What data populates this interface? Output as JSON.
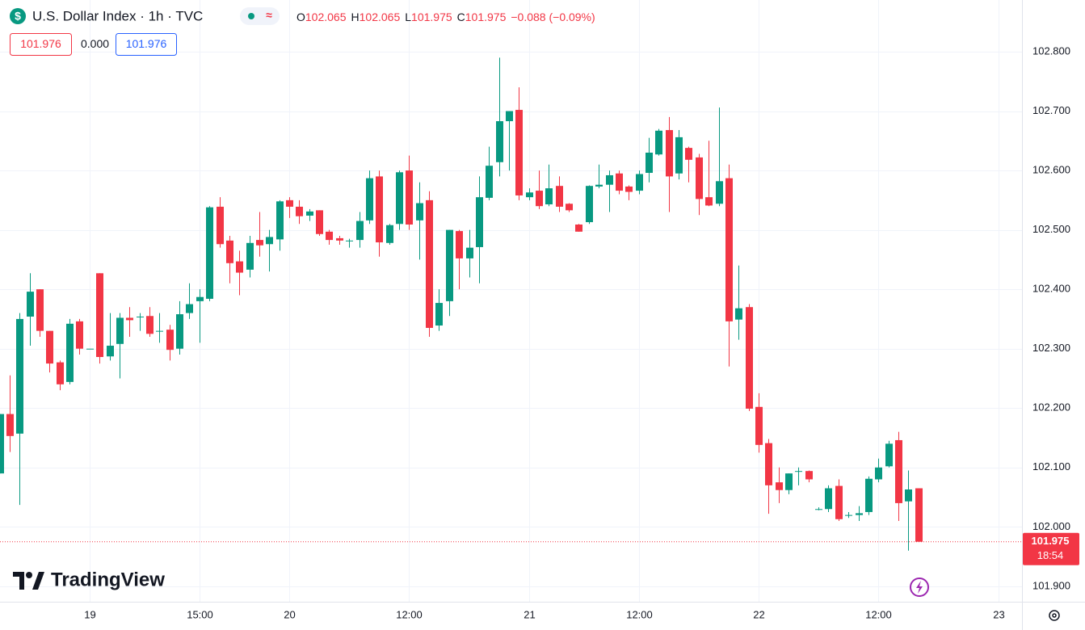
{
  "header": {
    "symbol": "U.S. Dollar Index · 1h · TVC",
    "open_label": "O",
    "open": "102.065",
    "high_label": "H",
    "high": "102.065",
    "low_label": "L",
    "low": "101.975",
    "close_label": "C",
    "close": "101.975",
    "change": "−0.088 (−0.09%)",
    "indicator_1": "101.976",
    "indicator_2": "0.000",
    "indicator_3": "101.976"
  },
  "watermark": "TradingView",
  "chart_data": {
    "type": "candlestick",
    "categories": [
      null,
      null,
      null,
      null,
      null,
      null,
      null,
      null,
      null,
      "19",
      null,
      null,
      null,
      null,
      null,
      null,
      null,
      null,
      null,
      null,
      "15:00",
      null,
      null,
      null,
      null,
      null,
      null,
      null,
      null,
      "20",
      null,
      null,
      null,
      null,
      null,
      null,
      null,
      null,
      null,
      null,
      null,
      "12:00",
      null,
      null,
      null,
      null,
      null,
      null,
      null,
      null,
      null,
      null,
      null,
      "21",
      null,
      null,
      null,
      null,
      null,
      null,
      null,
      null,
      null,
      null,
      "12:00",
      null,
      null,
      null,
      null,
      null,
      null,
      null,
      null,
      null,
      null,
      null,
      "22",
      null,
      null,
      null,
      null,
      null,
      null,
      null,
      null,
      null,
      null,
      null,
      "12:00",
      null,
      null,
      null,
      null,
      null,
      null,
      null,
      null,
      null,
      null,
      null,
      "23"
    ],
    "open": [
      102.09,
      102.19,
      102.157,
      102.354,
      102.4,
      102.33,
      102.277,
      102.244,
      102.346,
      102.3,
      102.427,
      102.287,
      102.308,
      102.352,
      102.354,
      102.355,
      102.33,
      102.332,
      102.3,
      102.36,
      102.38,
      102.384,
      102.539,
      102.482,
      102.447,
      102.433,
      102.483,
      102.476,
      102.484,
      102.55,
      102.539,
      102.524,
      102.533,
      102.497,
      102.486,
      102.482,
      102.483,
      102.516,
      102.59,
      102.478,
      102.51,
      102.6,
      102.516,
      102.55,
      102.339,
      102.38,
      102.498,
      102.452,
      102.471,
      102.554,
      102.614,
      102.683,
      102.702,
      102.555,
      102.566,
      102.543,
      102.574,
      102.544,
      102.509,
      102.513,
      102.573,
      102.576,
      102.595,
      102.573,
      102.566,
      102.596,
      102.627,
      102.668,
      102.595,
      102.638,
      102.622,
      102.555,
      102.544,
      102.587,
      102.349,
      102.37,
      102.202,
      102.141,
      102.075,
      102.062,
      102.094,
      102.094,
      102.03,
      102.03,
      102.069,
      102.02,
      102.02,
      102.025,
      102.08,
      102.102,
      102.146,
      102.043,
      102.065,
      null,
      null,
      null,
      null,
      null,
      null,
      null,
      null
    ],
    "high": [
      102.19,
      102.255,
      102.36,
      102.427,
      102.4,
      102.33,
      102.28,
      102.35,
      102.35,
      102.3,
      102.427,
      102.36,
      102.36,
      102.37,
      102.36,
      102.37,
      102.36,
      102.34,
      102.38,
      102.41,
      102.4,
      102.54,
      102.555,
      102.49,
      102.465,
      102.49,
      102.53,
      102.5,
      102.55,
      102.555,
      102.55,
      102.535,
      102.533,
      102.5,
      102.49,
      102.485,
      102.53,
      102.6,
      102.6,
      102.51,
      102.6,
      102.625,
      102.58,
      102.565,
      102.4,
      102.5,
      102.5,
      102.5,
      102.59,
      102.64,
      102.79,
      102.7,
      102.74,
      102.57,
      102.6,
      102.61,
      102.59,
      102.545,
      102.51,
      102.575,
      102.61,
      102.6,
      102.6,
      102.575,
      102.6,
      102.655,
      102.67,
      102.69,
      102.668,
      102.64,
      102.628,
      102.65,
      102.706,
      102.61,
      102.44,
      102.375,
      102.225,
      102.148,
      102.1,
      102.09,
      102.1,
      102.095,
      102.033,
      102.07,
      102.08,
      102.025,
      102.035,
      102.085,
      102.115,
      102.145,
      102.16,
      102.095,
      102.065,
      null,
      null,
      null,
      null,
      null,
      null,
      null,
      null
    ],
    "low": [
      102.09,
      102.126,
      102.037,
      102.305,
      102.32,
      102.26,
      102.23,
      102.24,
      102.29,
      102.3,
      102.275,
      102.28,
      102.25,
      102.32,
      102.33,
      102.32,
      102.31,
      102.28,
      102.29,
      102.35,
      102.31,
      102.38,
      102.47,
      102.41,
      102.39,
      102.42,
      102.455,
      102.43,
      102.465,
      102.52,
      102.51,
      102.515,
      102.49,
      102.475,
      102.475,
      102.47,
      102.47,
      102.51,
      102.455,
      102.475,
      102.5,
      102.5,
      102.45,
      102.32,
      102.33,
      102.355,
      102.4,
      102.42,
      102.41,
      102.55,
      102.59,
      102.6,
      102.55,
      102.55,
      102.535,
      102.54,
      102.53,
      102.53,
      102.497,
      102.51,
      102.57,
      102.53,
      102.56,
      102.55,
      102.56,
      102.58,
      102.625,
      102.53,
      102.585,
      102.58,
      102.525,
      102.54,
      102.54,
      102.27,
      102.315,
      102.195,
      102.125,
      102.022,
      102.04,
      102.055,
      102.07,
      102.075,
      102.028,
      102.025,
      102.01,
      102.015,
      102.01,
      102.02,
      102.075,
      102.1,
      102.01,
      101.96,
      101.975,
      null,
      null,
      null,
      null,
      null,
      null,
      null,
      null
    ],
    "close": [
      102.19,
      102.153,
      102.35,
      102.396,
      102.33,
      102.275,
      102.24,
      102.342,
      102.3,
      102.3,
      102.286,
      102.305,
      102.352,
      102.348,
      102.354,
      102.325,
      102.33,
      102.298,
      102.358,
      102.375,
      102.387,
      102.538,
      102.476,
      102.444,
      102.428,
      102.478,
      102.474,
      102.488,
      102.548,
      102.539,
      102.523,
      102.531,
      102.493,
      102.483,
      102.482,
      102.482,
      102.515,
      102.587,
      102.479,
      102.508,
      102.597,
      102.509,
      102.545,
      102.335,
      102.377,
      102.5,
      102.452,
      102.47,
      102.555,
      102.608,
      102.683,
      102.7,
      102.558,
      102.563,
      102.54,
      102.57,
      102.539,
      102.533,
      102.497,
      102.574,
      102.576,
      102.592,
      102.566,
      102.564,
      102.594,
      102.63,
      102.667,
      102.59,
      102.656,
      102.618,
      102.552,
      102.541,
      102.582,
      102.346,
      102.368,
      102.199,
      102.138,
      102.07,
      102.062,
      102.09,
      102.094,
      102.08,
      102.03,
      102.065,
      102.013,
      102.02,
      102.023,
      102.081,
      102.1,
      102.14,
      102.04,
      102.063,
      101.975,
      null,
      null,
      null,
      null,
      null,
      null,
      null,
      null
    ],
    "up_color": "#089981",
    "down_color": "#f23645",
    "ylim": [
      101.874,
      102.887
    ],
    "yticks": [
      {
        "value": 101.9,
        "label": "101.900"
      },
      {
        "value": 102.0,
        "label": "102.000"
      },
      {
        "value": 102.1,
        "label": "102.100"
      },
      {
        "value": 102.2,
        "label": "102.200"
      },
      {
        "value": 102.3,
        "label": "102.300"
      },
      {
        "value": 102.4,
        "label": "102.400"
      },
      {
        "value": 102.5,
        "label": "102.500"
      },
      {
        "value": 102.6,
        "label": "102.600"
      },
      {
        "value": 102.7,
        "label": "102.700"
      },
      {
        "value": 102.8,
        "label": "102.800"
      }
    ],
    "last_price": {
      "value": 101.975,
      "label": "101.975",
      "countdown": "18:54"
    },
    "grid": true
  }
}
